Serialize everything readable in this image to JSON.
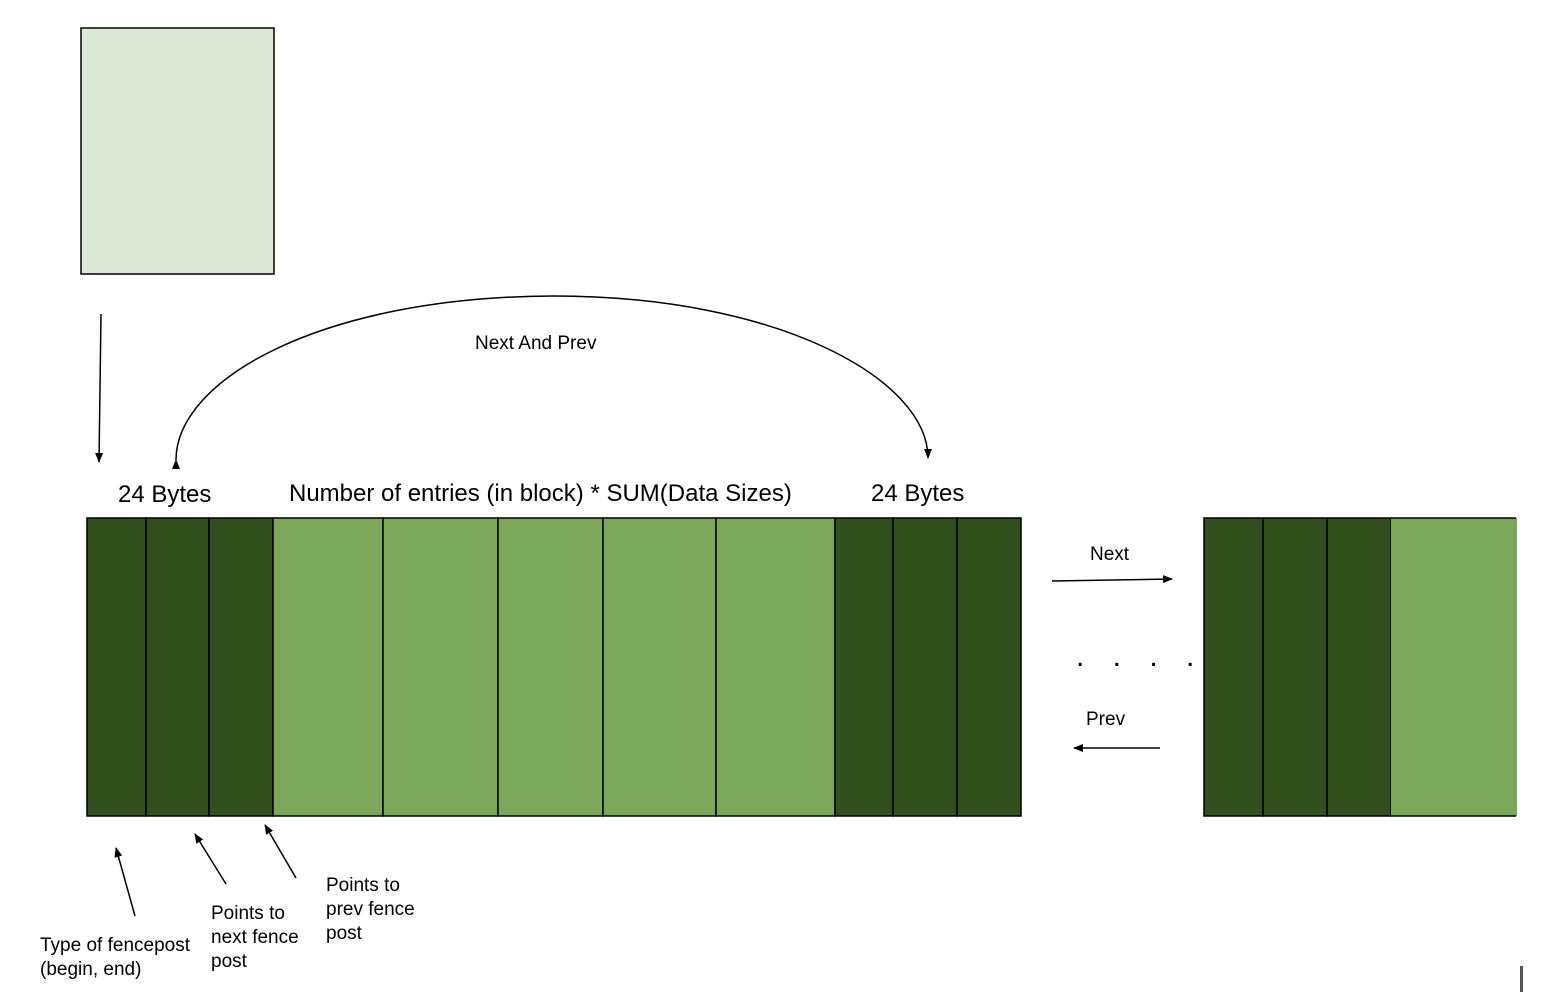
{
  "colors": {
    "header_block": "#dce8d5",
    "fencepost": "#324f1e",
    "data_cell": "#7aa75a",
    "outline": "#000000",
    "text": "#000000"
  },
  "labels": {
    "curve_arrow": "Next And Prev",
    "left_header_size": "24 Bytes",
    "data_size": "Number of entries (in block) * SUM(Data Sizes)",
    "right_header_size": "24 Bytes",
    "next_arrow": "Next",
    "prev_arrow": "Prev",
    "ellipsis": ". . . .",
    "fence_type": "Type of fencepost\n(begin, end)",
    "fence_next": "Points to\nnext fence\npost",
    "fence_prev": "Points to\nprev fence\npost"
  },
  "block": {
    "left_fencepost_fields": [
      "type",
      "next",
      "prev"
    ],
    "data_entries": 5,
    "right_fencepost_fields": [
      "type",
      "next",
      "prev"
    ]
  },
  "next_block": {
    "fencepost_fields": [
      "type",
      "next",
      "prev"
    ],
    "data_entries_visible": 1
  }
}
